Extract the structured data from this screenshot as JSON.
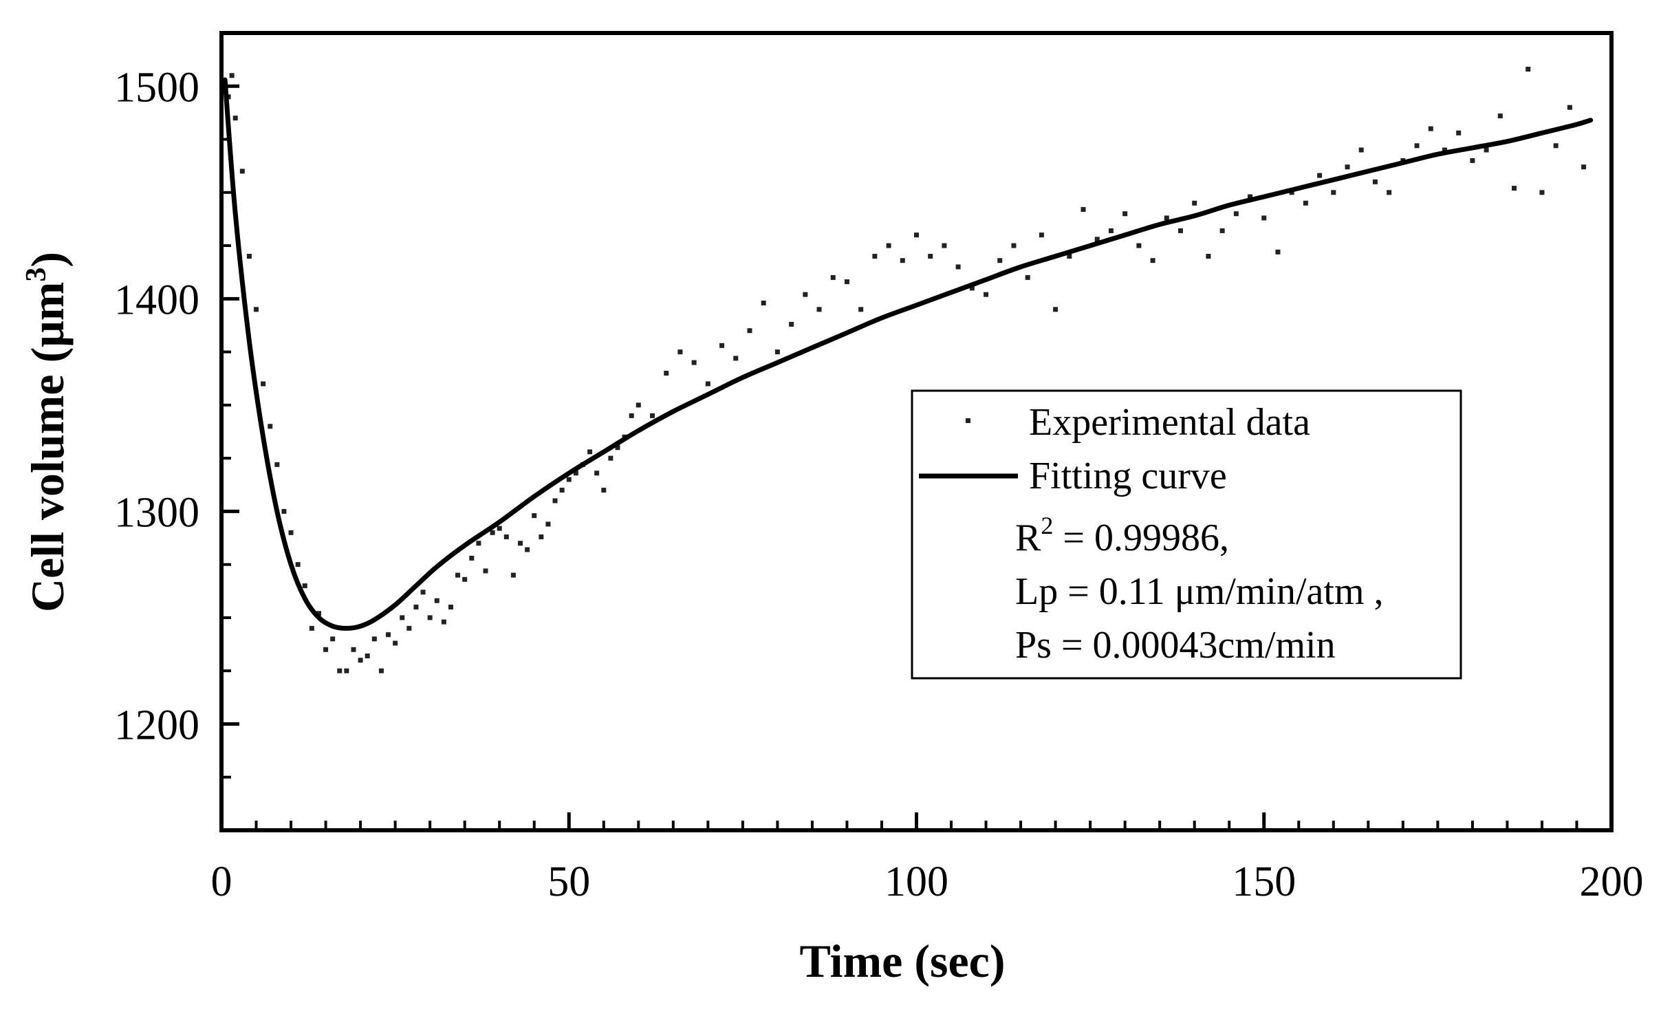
{
  "chart_data": {
    "type": "scatter",
    "title": "",
    "xlabel": "Time (sec)",
    "ylabel": "Cell volume (μm",
    "ylabel_sup": "3",
    "ylabel_close": ")",
    "xlim": [
      0,
      200
    ],
    "ylim": [
      1150,
      1525
    ],
    "xticks": [
      0,
      50,
      100,
      150,
      200
    ],
    "xticks_labels": [
      "0",
      "50",
      "100",
      "150",
      "200"
    ],
    "yticks": [
      1200,
      1300,
      1400,
      1500
    ],
    "yticks_labels": [
      "1200",
      "1300",
      "1400",
      "1500"
    ],
    "minor_x_step": 5,
    "minor_y_step": 25,
    "legend": {
      "position": "center-right",
      "scatter_label": "Experimental data",
      "line_label": "Fitting curve",
      "r2_prefix": "R",
      "r2_sup": "2",
      "r2_value": " = 0.99986,",
      "lp_text": "Lp = 0.11 μm/min/atm ,",
      "ps_text": "Ps = 0.00043cm/min"
    },
    "fit_curve": {
      "name": "Fitting curve",
      "x": [
        0.5,
        2,
        4,
        6,
        8,
        10,
        12,
        14,
        16,
        18,
        20,
        22,
        25,
        28,
        31,
        35,
        40,
        45,
        50,
        55,
        60,
        65,
        70,
        75,
        80,
        85,
        90,
        95,
        100,
        105,
        110,
        115,
        120,
        125,
        130,
        135,
        140,
        145,
        150,
        155,
        160,
        165,
        170,
        175,
        180,
        185,
        190,
        195,
        197
      ],
      "y": [
        1503,
        1440,
        1380,
        1335,
        1300,
        1275,
        1259,
        1250,
        1246,
        1245,
        1246,
        1249,
        1256,
        1265,
        1274,
        1284,
        1295,
        1307,
        1318,
        1328,
        1338,
        1347,
        1355,
        1363,
        1370,
        1377,
        1384,
        1391,
        1397,
        1403,
        1409,
        1415,
        1420,
        1425,
        1430,
        1435,
        1439,
        1444,
        1448,
        1452,
        1456,
        1460,
        1464,
        1468,
        1471,
        1474,
        1478,
        1482,
        1484
      ]
    },
    "series": [
      {
        "name": "Experimental data",
        "x": [
          0.5,
          1,
          1.5,
          2,
          3,
          4,
          5,
          6,
          7,
          8,
          9,
          10,
          11,
          12,
          13,
          14,
          15,
          16,
          17,
          18,
          19,
          20,
          21,
          22,
          23,
          24,
          25,
          26,
          27,
          28,
          29,
          30,
          31,
          32,
          33,
          34,
          35,
          36,
          37,
          38,
          39,
          40,
          41,
          42,
          43,
          44,
          45,
          46,
          47,
          48,
          49,
          50,
          51,
          52,
          53,
          54,
          55,
          56,
          57,
          58,
          59,
          60,
          62,
          64,
          66,
          68,
          70,
          72,
          74,
          76,
          78,
          80,
          82,
          84,
          86,
          88,
          90,
          92,
          94,
          96,
          98,
          100,
          102,
          104,
          106,
          108,
          110,
          112,
          114,
          116,
          118,
          120,
          122,
          124,
          126,
          128,
          130,
          132,
          134,
          136,
          138,
          140,
          142,
          144,
          146,
          148,
          150,
          152,
          154,
          156,
          158,
          160,
          162,
          164,
          166,
          168,
          170,
          172,
          174,
          176,
          178,
          180,
          182,
          184,
          186,
          188,
          190,
          192,
          194,
          196
        ],
        "y": [
          1502,
          1495,
          1505,
          1485,
          1460,
          1420,
          1395,
          1360,
          1340,
          1322,
          1300,
          1290,
          1275,
          1265,
          1245,
          1252,
          1235,
          1240,
          1225,
          1225,
          1235,
          1230,
          1232,
          1240,
          1225,
          1242,
          1238,
          1250,
          1245,
          1255,
          1262,
          1250,
          1258,
          1248,
          1255,
          1270,
          1268,
          1278,
          1285,
          1272,
          1290,
          1292,
          1288,
          1270,
          1285,
          1282,
          1298,
          1288,
          1294,
          1305,
          1310,
          1315,
          1318,
          1322,
          1328,
          1318,
          1310,
          1325,
          1330,
          1335,
          1345,
          1350,
          1345,
          1365,
          1375,
          1370,
          1360,
          1378,
          1372,
          1385,
          1398,
          1375,
          1388,
          1402,
          1395,
          1410,
          1408,
          1395,
          1420,
          1425,
          1418,
          1430,
          1420,
          1425,
          1415,
          1405,
          1402,
          1418,
          1425,
          1410,
          1430,
          1395,
          1420,
          1442,
          1428,
          1432,
          1440,
          1425,
          1418,
          1438,
          1432,
          1445,
          1420,
          1432,
          1440,
          1448,
          1438,
          1422,
          1450,
          1445,
          1458,
          1450,
          1462,
          1470,
          1455,
          1450,
          1465,
          1472,
          1480,
          1470,
          1478,
          1465,
          1470,
          1486,
          1452,
          1508,
          1450,
          1472,
          1490,
          1462
        ]
      }
    ]
  }
}
